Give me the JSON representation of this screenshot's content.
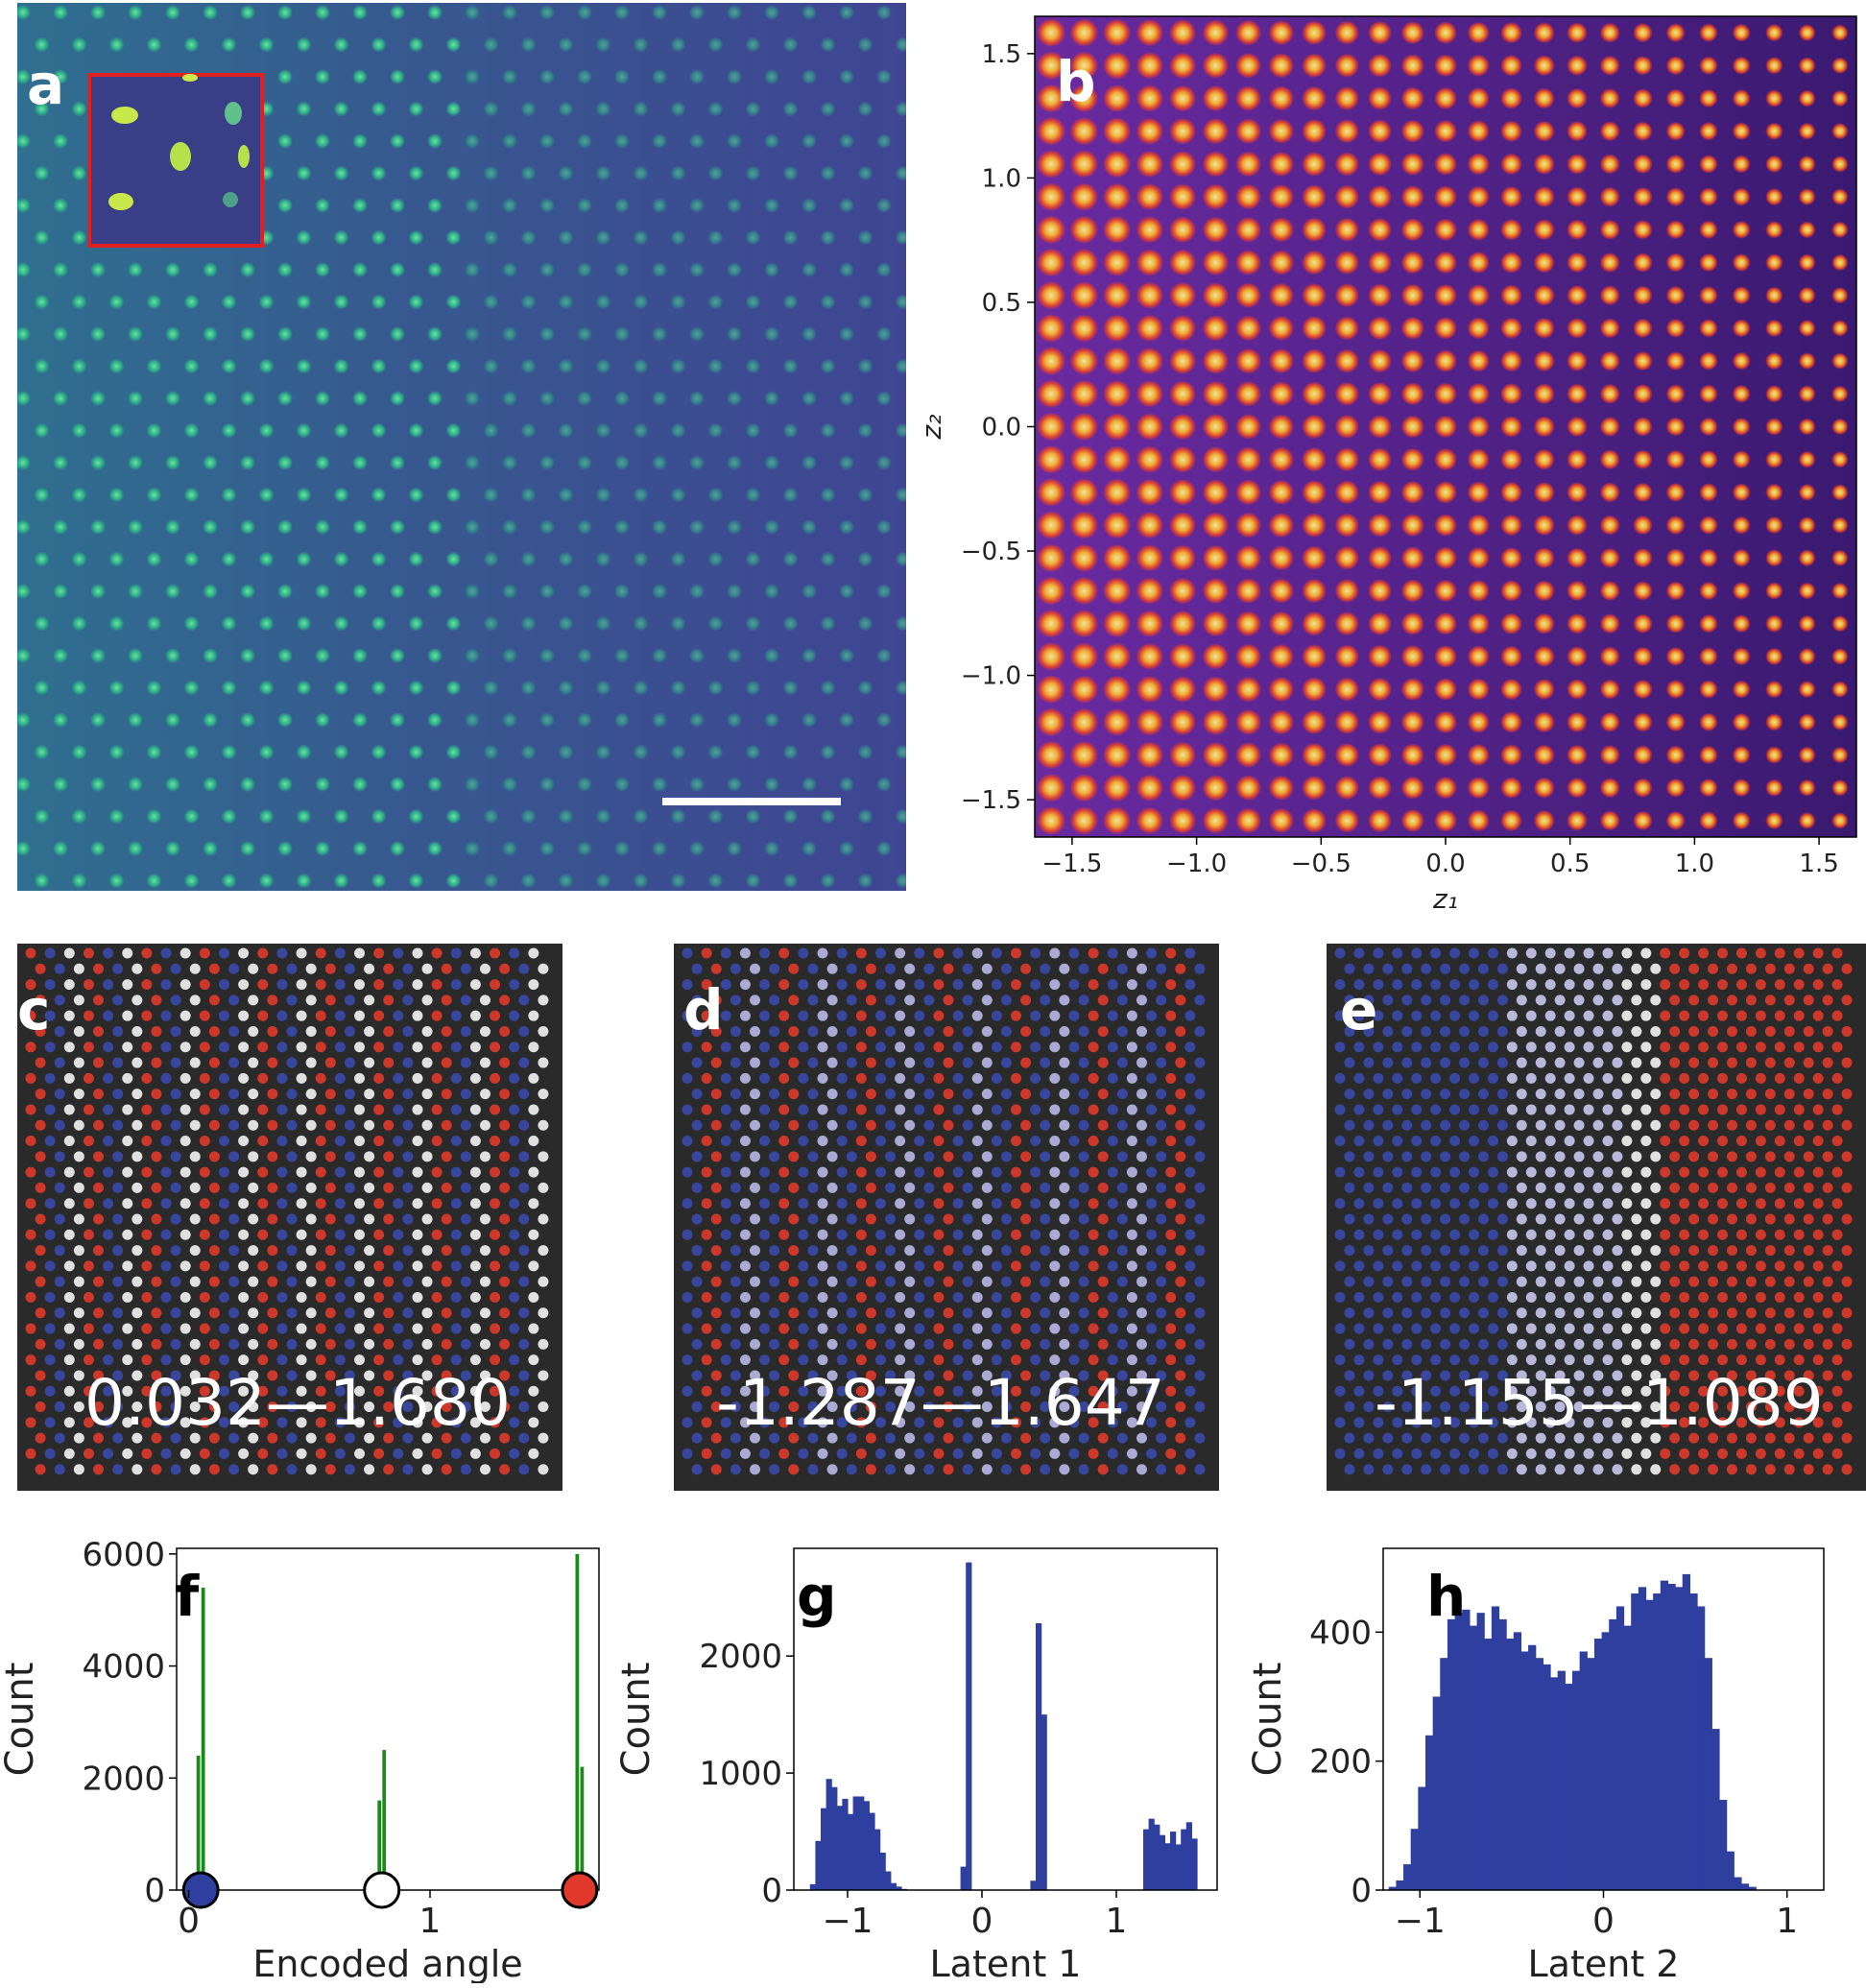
{
  "panels": {
    "a": {
      "label": "a"
    },
    "b": {
      "label": "b"
    },
    "c": {
      "label": "c",
      "range_text": "0.032—1.680"
    },
    "d": {
      "label": "d",
      "range_text": "-1.287—1.647"
    },
    "e": {
      "label": "e",
      "range_text": "-1.155—1.089"
    },
    "f": {
      "label": "f"
    },
    "g": {
      "label": "g"
    },
    "h": {
      "label": "h"
    }
  },
  "colors": {
    "map_background": "#3d4c92",
    "map_atom": "#2fb58a",
    "latent_background": "#5a2c9a",
    "latent_atom": "#ffd23a",
    "stem_background": "#2a2a2a",
    "atom_red": "#e03a2a",
    "atom_blue": "#3a4aaa",
    "hist_blue": "#2f3fa0",
    "hist_green": "#1b8a1b",
    "inset_border": "#e02020",
    "scale_bar": "#ffffff"
  },
  "chart_data": [
    {
      "panel": "b",
      "type": "heatmap",
      "title": "",
      "xlabel": "z₁",
      "ylabel": "z₂",
      "xlim": [
        -1.65,
        1.65
      ],
      "ylim": [
        -1.65,
        1.65
      ],
      "xticks": [
        "−1.5",
        "−1.0",
        "−0.5",
        "0.0",
        "0.5",
        "1.0",
        "1.5"
      ],
      "yticks": [
        "−1.5",
        "−1.0",
        "−0.5",
        "0.0",
        "0.5",
        "1.0",
        "1.5"
      ],
      "xtick_values": [
        -1.5,
        -1.0,
        -0.5,
        0.0,
        0.5,
        1.0,
        1.5
      ],
      "ytick_values": [
        -1.5,
        -1.0,
        -0.5,
        0.0,
        0.5,
        1.0,
        1.5
      ]
    },
    {
      "panel": "f",
      "type": "bar",
      "xlabel": "Encoded angle",
      "ylabel": "Count",
      "xlim": [
        -0.05,
        1.7
      ],
      "ylim": [
        0,
        6100
      ],
      "xticks": [
        "0",
        "1"
      ],
      "xtick_values": [
        0,
        1
      ],
      "yticks": [
        "0",
        "2000",
        "4000",
        "6000"
      ],
      "ytick_values": [
        0,
        2000,
        4000,
        6000
      ],
      "bar_width": 0.015,
      "bars": [
        {
          "x": 0.04,
          "value": 2400
        },
        {
          "x": 0.06,
          "value": 5400
        },
        {
          "x": 0.79,
          "value": 1600
        },
        {
          "x": 0.81,
          "value": 2500
        },
        {
          "x": 1.61,
          "value": 6000
        },
        {
          "x": 1.63,
          "value": 2200
        }
      ],
      "markers": [
        {
          "x": 0.05,
          "fill": "#2f3fa0"
        },
        {
          "x": 0.8,
          "fill": "#ffffff"
        },
        {
          "x": 1.62,
          "fill": "#e0392b"
        }
      ]
    },
    {
      "panel": "g",
      "type": "bar",
      "xlabel": "Latent 1",
      "ylabel": "Count",
      "xlim": [
        -1.4,
        1.75
      ],
      "ylim": [
        0,
        2920
      ],
      "xticks": [
        "−1",
        "0",
        "1"
      ],
      "xtick_values": [
        -1,
        0,
        1
      ],
      "yticks": [
        "0",
        "1000",
        "2000"
      ],
      "ytick_values": [
        0,
        1000,
        2000
      ],
      "bin_start": -1.28,
      "bin_width": 0.04,
      "values": [
        50,
        420,
        700,
        950,
        880,
        720,
        780,
        650,
        800,
        800,
        760,
        660,
        520,
        320,
        160,
        60,
        30,
        10,
        0,
        0,
        0,
        0,
        0,
        0,
        0,
        0,
        0,
        0,
        200,
        2800,
        0,
        0,
        0,
        0,
        0,
        0,
        0,
        0,
        0,
        0,
        0,
        80,
        2280,
        1500,
        0,
        0,
        0,
        0,
        0,
        0,
        0,
        0,
        0,
        0,
        0,
        0,
        0,
        0,
        0,
        0,
        0,
        0,
        520,
        610,
        560,
        470,
        400,
        500,
        390,
        520,
        580,
        440
      ]
    },
    {
      "panel": "h",
      "type": "bar",
      "xlabel": "Latent 2",
      "ylabel": "Count",
      "xlim": [
        -1.2,
        1.2
      ],
      "ylim": [
        0,
        530
      ],
      "xticks": [
        "−1",
        "0",
        "1"
      ],
      "xtick_values": [
        -1,
        0,
        1
      ],
      "yticks": [
        "0",
        "200",
        "400"
      ],
      "ytick_values": [
        0,
        200,
        400
      ],
      "bin_start": -1.17,
      "bin_width": 0.04,
      "values": [
        5,
        15,
        40,
        95,
        160,
        240,
        300,
        360,
        420,
        430,
        435,
        410,
        430,
        390,
        440,
        420,
        390,
        400,
        370,
        380,
        360,
        350,
        330,
        340,
        320,
        340,
        370,
        360,
        390,
        400,
        420,
        440,
        410,
        460,
        470,
        450,
        460,
        480,
        475,
        470,
        490,
        460,
        440,
        360,
        250,
        140,
        60,
        20,
        10,
        5
      ]
    }
  ]
}
